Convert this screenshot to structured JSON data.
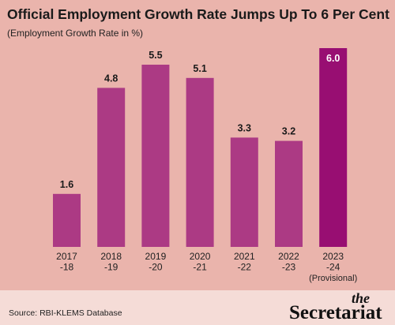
{
  "header": {
    "title": "Official Employment Growth Rate Jumps Up To 6 Per Cent",
    "subtitle": "(Employment Growth Rate in %)"
  },
  "footer": {
    "source": "Source: RBI-KLEMS Database",
    "brand_small": "the",
    "brand_main": "Secretariat"
  },
  "colors": {
    "bar": "#ac3a84",
    "highlight_bar": "#980e72",
    "background": "#eab4ac",
    "footer_background": "#f5dcd7"
  },
  "chart_data": {
    "type": "bar",
    "title": "Official Employment Growth Rate Jumps Up To 6 Per Cent",
    "subtitle": "(Employment Growth Rate in %)",
    "categories": [
      [
        "2017",
        "-18"
      ],
      [
        "2018",
        "-19"
      ],
      [
        "2019",
        "-20"
      ],
      [
        "2020",
        "-21"
      ],
      [
        "2021",
        "-22"
      ],
      [
        "2022",
        "-23"
      ],
      [
        "2023",
        "-24",
        "(Provisional)"
      ]
    ],
    "values": [
      1.6,
      4.8,
      5.5,
      5.1,
      3.3,
      3.2,
      6.0
    ],
    "value_labels": [
      "1.6",
      "4.8",
      "5.5",
      "5.1",
      "3.3",
      "3.2",
      "6.0"
    ],
    "highlight_index": 6,
    "ylim": [
      0,
      6.0
    ],
    "grid": false,
    "legend": "none"
  }
}
